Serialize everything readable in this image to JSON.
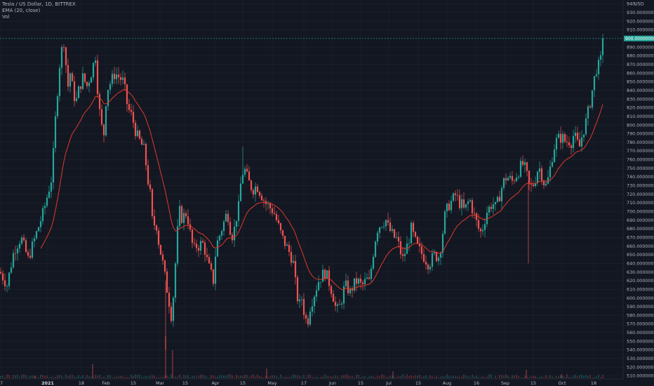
{
  "legend": {
    "title": "Tesla / US Dollar, 1D, BITTREX",
    "ema": "EMA (20, close)",
    "vol": "Vol"
  },
  "colors": {
    "background": "#131722",
    "grid": "#1f2430",
    "up": "#26a69a",
    "down": "#ef5350",
    "ema": "#e0392b",
    "axis_text": "#b2b5be"
  },
  "chart_data": {
    "type": "candlestick",
    "x_axis": {
      "labels": [
        "7",
        "2021",
        "18",
        "Feb",
        "15",
        "Mar",
        "15",
        "Apr",
        "15",
        "May",
        "17",
        "Jun",
        "15",
        "Jul",
        "15",
        "Aug",
        "16",
        "Sep",
        "15",
        "Oct",
        "18"
      ],
      "bold_labels": [
        "2021"
      ]
    },
    "y_axis": {
      "range": [
        510,
        940
      ],
      "unit_label": "USD",
      "labels": [
        "940.",
        "930.00000000",
        "920.00000000",
        "910.00000000",
        "890.00000000",
        "880.00000000",
        "870.00000000",
        "860.00000000",
        "850.00000000",
        "840.00000000",
        "830.00000000",
        "820.00000000",
        "810.00000000",
        "800.00000000",
        "790.00000000",
        "780.00000000",
        "770.00000000",
        "760.00000000",
        "750.00000000",
        "740.00000000",
        "730.00000000",
        "720.00000000",
        "710.00000000",
        "700.00000000",
        "690.00000000",
        "680.00000000",
        "670.00000000",
        "660.00000000",
        "650.00000000",
        "640.00000000",
        "630.00000000",
        "620.00000000",
        "610.00000000",
        "600.00000000",
        "590.00000000",
        "580.00000000",
        "570.00000000",
        "560.00000000",
        "550.00000000",
        "540.00000000",
        "530.00000000",
        "520.00000000",
        "510.00000000"
      ],
      "label_values": [
        940,
        930,
        920,
        910,
        890,
        880,
        870,
        860,
        850,
        840,
        830,
        820,
        810,
        800,
        790,
        780,
        770,
        760,
        750,
        740,
        730,
        720,
        710,
        700,
        690,
        680,
        670,
        660,
        650,
        640,
        630,
        620,
        610,
        600,
        590,
        580,
        570,
        560,
        550,
        540,
        530,
        520,
        510
      ]
    },
    "last_price": {
      "value": 900,
      "label": "900.00000000"
    },
    "price_path": [
      [
        0,
        630
      ],
      [
        10,
        615
      ],
      [
        20,
        655
      ],
      [
        30,
        670
      ],
      [
        40,
        645
      ],
      [
        48,
        665
      ],
      [
        56,
        685
      ],
      [
        62,
        700
      ],
      [
        68,
        720
      ],
      [
        74,
        740
      ],
      [
        80,
        820
      ],
      [
        86,
        880
      ],
      [
        92,
        900
      ],
      [
        96,
        840
      ],
      [
        100,
        860
      ],
      [
        104,
        840
      ],
      [
        108,
        825
      ],
      [
        112,
        840
      ],
      [
        118,
        855
      ],
      [
        124,
        845
      ],
      [
        130,
        860
      ],
      [
        136,
        880
      ],
      [
        140,
        830
      ],
      [
        144,
        800
      ],
      [
        148,
        790
      ],
      [
        152,
        840
      ],
      [
        158,
        850
      ],
      [
        164,
        860
      ],
      [
        170,
        855
      ],
      [
        176,
        850
      ],
      [
        182,
        820
      ],
      [
        188,
        810
      ],
      [
        194,
        790
      ],
      [
        200,
        780
      ],
      [
        206,
        770
      ],
      [
        210,
        740
      ],
      [
        214,
        720
      ],
      [
        218,
        680
      ],
      [
        222,
        690
      ],
      [
        226,
        665
      ],
      [
        232,
        640
      ],
      [
        236,
        620
      ],
      [
        240,
        600
      ],
      [
        244,
        580
      ],
      [
        248,
        610
      ],
      [
        252,
        670
      ],
      [
        256,
        700
      ],
      [
        260,
        690
      ],
      [
        264,
        700
      ],
      [
        268,
        690
      ],
      [
        272,
        670
      ],
      [
        276,
        655
      ],
      [
        280,
        660
      ],
      [
        284,
        660
      ],
      [
        288,
        665
      ],
      [
        292,
        655
      ],
      [
        296,
        640
      ],
      [
        300,
        630
      ],
      [
        304,
        620
      ],
      [
        308,
        660
      ],
      [
        312,
        670
      ],
      [
        316,
        680
      ],
      [
        320,
        690
      ],
      [
        324,
        700
      ],
      [
        328,
        680
      ],
      [
        332,
        670
      ],
      [
        336,
        690
      ],
      [
        340,
        705
      ],
      [
        344,
        740
      ],
      [
        348,
        750
      ],
      [
        354,
        735
      ],
      [
        360,
        725
      ],
      [
        366,
        730
      ],
      [
        372,
        720
      ],
      [
        378,
        710
      ],
      [
        384,
        705
      ],
      [
        390,
        700
      ],
      [
        396,
        685
      ],
      [
        402,
        670
      ],
      [
        408,
        660
      ],
      [
        414,
        650
      ],
      [
        418,
        640
      ],
      [
        422,
        610
      ],
      [
        426,
        590
      ],
      [
        430,
        600
      ],
      [
        434,
        580
      ],
      [
        438,
        570
      ],
      [
        442,
        590
      ],
      [
        446,
        600
      ],
      [
        450,
        610
      ],
      [
        454,
        620
      ],
      [
        458,
        625
      ],
      [
        462,
        630
      ],
      [
        466,
        625
      ],
      [
        470,
        615
      ],
      [
        474,
        605
      ],
      [
        478,
        590
      ],
      [
        482,
        585
      ],
      [
        486,
        595
      ],
      [
        490,
        610
      ],
      [
        494,
        615
      ],
      [
        498,
        605
      ],
      [
        502,
        612
      ],
      [
        506,
        618
      ],
      [
        510,
        620
      ],
      [
        514,
        615
      ],
      [
        518,
        615
      ],
      [
        522,
        622
      ],
      [
        526,
        618
      ],
      [
        530,
        640
      ],
      [
        534,
        665
      ],
      [
        538,
        680
      ],
      [
        542,
        685
      ],
      [
        546,
        688
      ],
      [
        550,
        690
      ],
      [
        554,
        680
      ],
      [
        558,
        675
      ],
      [
        562,
        670
      ],
      [
        566,
        668
      ],
      [
        570,
        655
      ],
      [
        574,
        645
      ],
      [
        578,
        655
      ],
      [
        582,
        665
      ],
      [
        586,
        680
      ],
      [
        590,
        670
      ],
      [
        594,
        660
      ],
      [
        598,
        655
      ],
      [
        602,
        650
      ],
      [
        606,
        645
      ],
      [
        610,
        640
      ],
      [
        614,
        642
      ],
      [
        618,
        650
      ],
      [
        622,
        648
      ],
      [
        626,
        648
      ],
      [
        630,
        670
      ],
      [
        634,
        695
      ],
      [
        638,
        705
      ],
      [
        642,
        710
      ],
      [
        646,
        715
      ],
      [
        650,
        720
      ],
      [
        654,
        710
      ],
      [
        658,
        708
      ],
      [
        662,
        700
      ],
      [
        666,
        710
      ],
      [
        670,
        712
      ],
      [
        674,
        700
      ],
      [
        678,
        690
      ],
      [
        682,
        680
      ],
      [
        686,
        675
      ],
      [
        690,
        688
      ],
      [
        694,
        700
      ],
      [
        698,
        705
      ],
      [
        702,
        710
      ],
      [
        706,
        705
      ],
      [
        710,
        712
      ],
      [
        714,
        725
      ],
      [
        718,
        735
      ],
      [
        722,
        740
      ],
      [
        726,
        738
      ],
      [
        730,
        735
      ],
      [
        734,
        740
      ],
      [
        738,
        745
      ],
      [
        742,
        752
      ],
      [
        746,
        755
      ],
      [
        750,
        745
      ],
      [
        754,
        730
      ],
      [
        758,
        728
      ],
      [
        762,
        735
      ],
      [
        766,
        748
      ],
      [
        770,
        750
      ],
      [
        774,
        735
      ],
      [
        778,
        730
      ],
      [
        782,
        740
      ],
      [
        786,
        760
      ],
      [
        790,
        775
      ],
      [
        794,
        784
      ],
      [
        798,
        785
      ],
      [
        802,
        785
      ],
      [
        806,
        780
      ],
      [
        810,
        782
      ],
      [
        814,
        780
      ],
      [
        818,
        790
      ],
      [
        822,
        780
      ],
      [
        826,
        775
      ],
      [
        830,
        790
      ],
      [
        834,
        800
      ],
      [
        838,
        815
      ],
      [
        842,
        830
      ],
      [
        846,
        850
      ],
      [
        850,
        865
      ],
      [
        854,
        870
      ],
      [
        858,
        880
      ],
      [
        860,
        900
      ]
    ],
    "volume_spikes": [
      [
        50,
        4
      ],
      [
        132,
        20
      ],
      [
        236,
        60
      ],
      [
        246,
        40
      ],
      [
        380,
        14
      ],
      [
        560,
        10
      ],
      [
        750,
        12
      ],
      [
        800,
        6
      ]
    ]
  }
}
